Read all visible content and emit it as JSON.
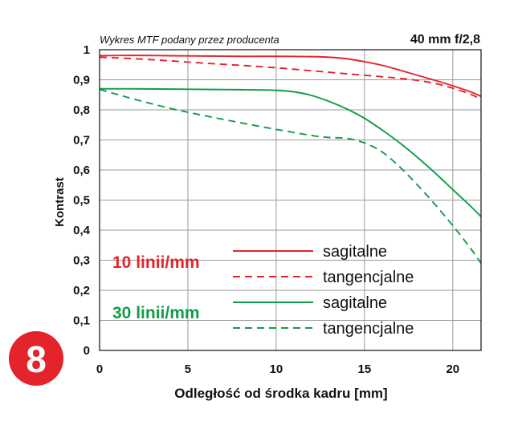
{
  "chart_data": {
    "type": "line",
    "subtitle": "Wykres MTF podany przez producenta",
    "title": "40 mm f/2,8",
    "xlabel": "Odległość od środka kadru [mm]",
    "ylabel": "Kontrast",
    "xlim": [
      0,
      21.6
    ],
    "ylim": [
      0,
      1
    ],
    "x_ticks": [
      "0",
      "5",
      "10",
      "15",
      "20"
    ],
    "y_ticks": [
      "0",
      "0,1",
      "0,2",
      "0,3",
      "0,4",
      "0,5",
      "0,6",
      "0,7",
      "0,8",
      "0,9",
      "1"
    ],
    "grid": true,
    "legend_position": "bottom-center",
    "groups": [
      {
        "label": "10 linii/mm",
        "color": "#e3242b"
      },
      {
        "label": "30 linii/mm",
        "color": "#0f9d48"
      }
    ],
    "series": [
      {
        "group": 0,
        "name": "sagitalne",
        "style": "solid",
        "color": "#e3242b",
        "x": [
          0,
          2,
          4,
          6,
          8,
          10,
          12,
          13,
          14,
          15,
          16,
          17,
          18,
          19,
          20,
          21,
          21.6
        ],
        "y": [
          0.98,
          0.981,
          0.98,
          0.979,
          0.978,
          0.978,
          0.977,
          0.975,
          0.97,
          0.96,
          0.948,
          0.932,
          0.915,
          0.898,
          0.88,
          0.86,
          0.845
        ]
      },
      {
        "group": 0,
        "name": "tangencjalne",
        "style": "dashed",
        "color": "#e3242b",
        "x": [
          0,
          2,
          4,
          6,
          8,
          10,
          12,
          14,
          16,
          17,
          18,
          19,
          20,
          21,
          21.6
        ],
        "y": [
          0.975,
          0.97,
          0.963,
          0.955,
          0.948,
          0.94,
          0.93,
          0.92,
          0.91,
          0.905,
          0.898,
          0.888,
          0.872,
          0.852,
          0.835
        ]
      },
      {
        "group": 1,
        "name": "sagitalne",
        "style": "solid",
        "color": "#0f9d48",
        "x": [
          0,
          2,
          4,
          6,
          8,
          10,
          11,
          12,
          13,
          14,
          15,
          16,
          17,
          18,
          19,
          20,
          21,
          21.6
        ],
        "y": [
          0.87,
          0.87,
          0.869,
          0.868,
          0.867,
          0.865,
          0.86,
          0.848,
          0.828,
          0.803,
          0.772,
          0.733,
          0.69,
          0.642,
          0.59,
          0.535,
          0.48,
          0.445
        ]
      },
      {
        "group": 1,
        "name": "tangencjalne",
        "style": "dashed",
        "color": "#0f9d48",
        "x": [
          0,
          2,
          4,
          6,
          8,
          10,
          12,
          13,
          14,
          15,
          16,
          17,
          18,
          19,
          20,
          21,
          21.6
        ],
        "y": [
          0.868,
          0.835,
          0.805,
          0.78,
          0.757,
          0.735,
          0.715,
          0.708,
          0.705,
          0.69,
          0.66,
          0.61,
          0.55,
          0.485,
          0.415,
          0.34,
          0.29
        ]
      }
    ]
  },
  "badge": {
    "text": "8",
    "color": "#e3242b"
  }
}
